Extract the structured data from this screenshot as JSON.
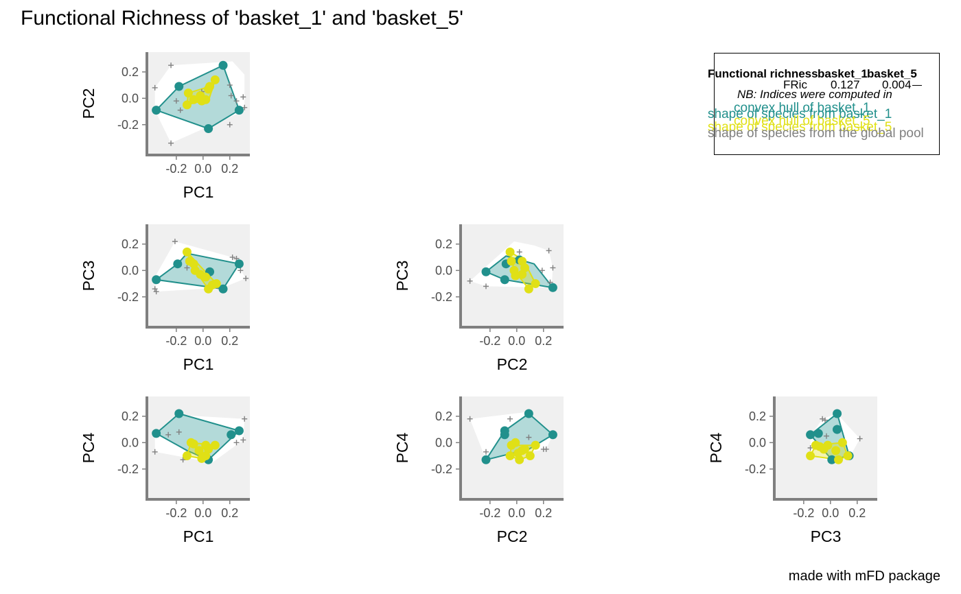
{
  "title": "Functional Richness of 'basket_1' and 'basket_5'",
  "caption": "made with mFD package",
  "colors": {
    "basket_1": "#21908c",
    "basket_1_fill": "#a6d4d2",
    "basket_5": "#e0e016",
    "pool": "#808080",
    "panel_bg": "#f0f0f0",
    "axis": "#7f7f7f"
  },
  "legend": {
    "header": [
      "Functional richness",
      "basket_1",
      "basket_5"
    ],
    "fric_label": "FRic",
    "fric_values": [
      "0.127",
      "0.004"
    ],
    "note": "NB: Indices were computed in",
    "hull_b1": "convex hull of basket_1",
    "shape_b1": "shape of species from basket_1",
    "hull_b5": "convex hull of basket_5",
    "shape_b5": "shape of species from basket_5",
    "shape_pool": "shape of species from the global pool"
  },
  "chart_data": [
    {
      "type": "scatter",
      "xlabel": "PC1",
      "ylabel": "PC2",
      "xticks": [
        "-0.2",
        "0.0",
        "0.2"
      ],
      "yticks": [
        "0.2",
        "0.0",
        "-0.2"
      ],
      "xlim": [
        -0.42,
        0.35
      ],
      "ylim": [
        -0.43,
        0.35
      ],
      "pool": [
        [
          -0.24,
          0.25
        ],
        [
          -0.36,
          0.08
        ],
        [
          -0.01,
          0.05
        ],
        [
          0.21,
          0.02
        ],
        [
          0.3,
          0.01
        ],
        [
          0.31,
          -0.07
        ],
        [
          0.25,
          -0.02
        ],
        [
          -0.2,
          -0.02
        ],
        [
          -0.17,
          -0.09
        ],
        [
          0.2,
          -0.2
        ],
        [
          -0.24,
          -0.34
        ],
        [
          0.2,
          0.1
        ]
      ],
      "pool_hull": [
        [
          -0.24,
          0.25
        ],
        [
          0.22,
          0.28
        ],
        [
          0.31,
          0.18
        ],
        [
          0.31,
          -0.07
        ],
        [
          0.25,
          -0.12
        ],
        [
          -0.24,
          -0.34
        ],
        [
          -0.36,
          -0.09
        ],
        [
          -0.36,
          0.08
        ]
      ],
      "basket_1": [
        [
          -0.35,
          -0.09
        ],
        [
          -0.18,
          0.09
        ],
        [
          0.15,
          0.25
        ],
        [
          0.27,
          -0.09
        ],
        [
          0.04,
          -0.23
        ],
        [
          -0.01,
          -0.01
        ]
      ],
      "basket_1_hull": [
        [
          -0.35,
          -0.09
        ],
        [
          -0.18,
          0.09
        ],
        [
          0.15,
          0.25
        ],
        [
          0.27,
          -0.09
        ],
        [
          0.04,
          -0.23
        ]
      ],
      "basket_5": [
        [
          -0.12,
          -0.05
        ],
        [
          -0.11,
          0.04
        ],
        [
          -0.07,
          -0.01
        ],
        [
          -0.02,
          0.02
        ],
        [
          0.02,
          -0.01
        ],
        [
          0.04,
          0.07
        ],
        [
          0.05,
          0.09
        ],
        [
          0.09,
          0.14
        ],
        [
          -0.01,
          -0.02
        ]
      ],
      "basket_5_hull": [
        [
          -0.12,
          -0.05
        ],
        [
          -0.11,
          0.04
        ],
        [
          0.05,
          0.09
        ],
        [
          0.09,
          0.14
        ],
        [
          0.04,
          -0.02
        ],
        [
          -0.01,
          -0.02
        ]
      ]
    },
    {
      "type": "scatter",
      "xlabel": "PC1",
      "ylabel": "PC3",
      "xticks": [
        "-0.2",
        "0.0",
        "0.2"
      ],
      "yticks": [
        "0.2",
        "0.0",
        "-0.2"
      ],
      "xlim": [
        -0.42,
        0.35
      ],
      "ylim": [
        -0.43,
        0.35
      ],
      "pool": [
        [
          -0.21,
          0.22
        ],
        [
          -0.36,
          -0.14
        ],
        [
          -0.35,
          -0.16
        ],
        [
          0.22,
          0.1
        ],
        [
          0.25,
          0.09
        ],
        [
          0.32,
          -0.06
        ],
        [
          0.28,
          0.0
        ],
        [
          -0.12,
          0.02
        ],
        [
          0.11,
          -0.12
        ]
      ],
      "pool_hull": [
        [
          -0.21,
          0.22
        ],
        [
          0.22,
          0.1
        ],
        [
          0.32,
          -0.06
        ],
        [
          0.15,
          -0.13
        ],
        [
          -0.35,
          -0.16
        ],
        [
          -0.36,
          -0.05
        ]
      ],
      "basket_1": [
        [
          -0.35,
          -0.07
        ],
        [
          -0.19,
          0.05
        ],
        [
          0.27,
          0.05
        ],
        [
          0.15,
          -0.14
        ],
        [
          0.05,
          -0.01
        ]
      ],
      "basket_1_hull": [
        [
          -0.35,
          -0.07
        ],
        [
          -0.19,
          0.05
        ],
        [
          -0.12,
          0.13
        ],
        [
          0.27,
          0.05
        ],
        [
          0.15,
          -0.14
        ]
      ],
      "basket_5": [
        [
          -0.12,
          0.14
        ],
        [
          -0.1,
          0.07
        ],
        [
          -0.07,
          0.05
        ],
        [
          -0.06,
          0.0
        ],
        [
          -0.02,
          -0.03
        ],
        [
          0.02,
          -0.05
        ],
        [
          0.04,
          -0.14
        ],
        [
          0.07,
          -0.11
        ],
        [
          0.1,
          -0.1
        ]
      ],
      "basket_5_hull": [
        [
          -0.12,
          0.14
        ],
        [
          0.1,
          -0.1
        ],
        [
          0.04,
          -0.14
        ],
        [
          -0.06,
          0.0
        ]
      ]
    },
    {
      "type": "scatter",
      "xlabel": "PC2",
      "ylabel": "PC3",
      "xticks": [
        "-0.2",
        "0.0",
        "0.2"
      ],
      "yticks": [
        "0.2",
        "0.0",
        "-0.2"
      ],
      "xlim": [
        -0.42,
        0.35
      ],
      "ylim": [
        -0.43,
        0.35
      ],
      "pool": [
        [
          -0.35,
          -0.08
        ],
        [
          -0.23,
          -0.12
        ],
        [
          0.02,
          0.14
        ],
        [
          0.24,
          0.15
        ],
        [
          0.27,
          0.02
        ],
        [
          0.25,
          -0.09
        ],
        [
          0.19,
          0.0
        ]
      ],
      "pool_hull": [
        [
          -0.35,
          -0.08
        ],
        [
          -0.02,
          0.22
        ],
        [
          0.13,
          0.19
        ],
        [
          0.24,
          0.15
        ],
        [
          0.27,
          0.02
        ],
        [
          0.26,
          -0.13
        ],
        [
          -0.23,
          -0.12
        ]
      ],
      "basket_1": [
        [
          -0.23,
          -0.01
        ],
        [
          -0.08,
          0.05
        ],
        [
          -0.09,
          -0.07
        ],
        [
          0.27,
          -0.13
        ],
        [
          0.02,
          0.08
        ]
      ],
      "basket_1_hull": [
        [
          -0.23,
          -0.01
        ],
        [
          -0.08,
          0.11
        ],
        [
          0.13,
          0.05
        ],
        [
          0.27,
          -0.13
        ],
        [
          -0.09,
          -0.07
        ]
      ],
      "basket_5": [
        [
          -0.05,
          0.14
        ],
        [
          -0.04,
          0.07
        ],
        [
          -0.02,
          0.0
        ],
        [
          -0.01,
          -0.04
        ],
        [
          0.04,
          0.07
        ],
        [
          0.06,
          0.02
        ],
        [
          0.09,
          -0.14
        ],
        [
          0.14,
          -0.1
        ],
        [
          0.04,
          -0.03
        ]
      ],
      "basket_5_hull": [
        [
          -0.05,
          0.14
        ],
        [
          0.05,
          0.08
        ],
        [
          0.14,
          -0.1
        ],
        [
          0.09,
          -0.14
        ],
        [
          -0.02,
          0.0
        ]
      ]
    },
    {
      "type": "scatter",
      "xlabel": "PC1",
      "ylabel": "PC4",
      "xticks": [
        "-0.2",
        "0.0",
        "0.2"
      ],
      "yticks": [
        "0.2",
        "0.0",
        "-0.2"
      ],
      "xlim": [
        -0.42,
        0.35
      ],
      "ylim": [
        -0.43,
        0.35
      ],
      "pool": [
        [
          -0.36,
          -0.07
        ],
        [
          -0.26,
          0.06
        ],
        [
          -0.18,
          0.08
        ],
        [
          -0.15,
          -0.13
        ],
        [
          0.31,
          0.18
        ],
        [
          0.25,
          0.0
        ],
        [
          0.3,
          0.02
        ]
      ],
      "pool_hull": [
        [
          -0.36,
          0.07
        ],
        [
          -0.2,
          0.21
        ],
        [
          0.31,
          0.18
        ],
        [
          0.3,
          0.02
        ],
        [
          0.07,
          -0.15
        ],
        [
          -0.36,
          -0.07
        ]
      ],
      "basket_1": [
        [
          -0.35,
          0.07
        ],
        [
          -0.18,
          0.22
        ],
        [
          0.27,
          0.09
        ],
        [
          0.21,
          0.06
        ],
        [
          0.04,
          -0.13
        ]
      ],
      "basket_1_hull": [
        [
          -0.35,
          0.07
        ],
        [
          -0.18,
          0.22
        ],
        [
          0.27,
          0.09
        ],
        [
          0.04,
          -0.13
        ],
        [
          -0.12,
          -0.06
        ]
      ],
      "basket_5": [
        [
          -0.12,
          -0.1
        ],
        [
          -0.09,
          0.0
        ],
        [
          -0.07,
          -0.01
        ],
        [
          -0.03,
          -0.06
        ],
        [
          -0.01,
          -0.12
        ],
        [
          0.02,
          -0.02
        ],
        [
          0.04,
          -0.05
        ],
        [
          0.09,
          -0.02
        ],
        [
          0.02,
          -0.1
        ]
      ],
      "basket_5_hull": [
        [
          -0.12,
          -0.1
        ],
        [
          -0.09,
          0.0
        ],
        [
          0.09,
          -0.02
        ],
        [
          0.02,
          -0.1
        ],
        [
          -0.01,
          -0.12
        ]
      ]
    },
    {
      "type": "scatter",
      "xlabel": "PC2",
      "ylabel": "PC4",
      "xticks": [
        "-0.2",
        "0.0",
        "0.2"
      ],
      "yticks": [
        "0.2",
        "0.0",
        "-0.2"
      ],
      "xlim": [
        -0.42,
        0.35
      ],
      "ylim": [
        -0.43,
        0.35
      ],
      "pool": [
        [
          -0.35,
          0.18
        ],
        [
          -0.23,
          -0.07
        ],
        [
          -0.1,
          0.06
        ],
        [
          -0.05,
          0.18
        ],
        [
          0.09,
          0.04
        ],
        [
          0.15,
          -0.01
        ],
        [
          0.2,
          -0.05
        ],
        [
          0.22,
          -0.05
        ]
      ],
      "pool_hull": [
        [
          -0.35,
          0.18
        ],
        [
          0.06,
          0.23
        ],
        [
          0.13,
          0.19
        ],
        [
          0.27,
          0.06
        ],
        [
          0.22,
          -0.05
        ],
        [
          -0.23,
          -0.13
        ]
      ],
      "basket_1": [
        [
          -0.23,
          -0.13
        ],
        [
          -0.09,
          0.09
        ],
        [
          -0.09,
          0.06
        ],
        [
          0.09,
          0.22
        ],
        [
          0.27,
          0.06
        ]
      ],
      "basket_1_hull": [
        [
          -0.23,
          -0.13
        ],
        [
          -0.09,
          0.09
        ],
        [
          0.09,
          0.22
        ],
        [
          0.27,
          0.06
        ],
        [
          0.09,
          -0.05
        ]
      ],
      "basket_5": [
        [
          -0.05,
          -0.1
        ],
        [
          -0.04,
          -0.02
        ],
        [
          -0.01,
          0.0
        ],
        [
          0.01,
          -0.08
        ],
        [
          0.02,
          -0.13
        ],
        [
          0.06,
          -0.05
        ],
        [
          0.1,
          -0.1
        ],
        [
          0.14,
          -0.02
        ],
        [
          0.04,
          -0.06
        ]
      ],
      "basket_5_hull": [
        [
          -0.05,
          -0.1
        ],
        [
          -0.04,
          -0.02
        ],
        [
          0.14,
          -0.02
        ],
        [
          0.1,
          -0.1
        ],
        [
          0.02,
          -0.13
        ]
      ]
    },
    {
      "type": "scatter",
      "xlabel": "PC3",
      "ylabel": "PC4",
      "xticks": [
        "-0.2",
        "0.0",
        "0.2"
      ],
      "yticks": [
        "0.2",
        "0.0",
        "-0.2"
      ],
      "xlim": [
        -0.42,
        0.35
      ],
      "ylim": [
        -0.43,
        0.35
      ],
      "pool": [
        [
          -0.06,
          0.18
        ],
        [
          -0.04,
          0.17
        ],
        [
          -0.03,
          0.05
        ],
        [
          -0.15,
          -0.04
        ],
        [
          0.22,
          0.03
        ],
        [
          0.1,
          0.0
        ]
      ],
      "pool_hull": [
        [
          -0.06,
          0.18
        ],
        [
          0.05,
          0.22
        ],
        [
          0.12,
          0.14
        ],
        [
          0.22,
          0.03
        ],
        [
          0.15,
          -0.1
        ],
        [
          0.0,
          -0.14
        ],
        [
          -0.15,
          -0.1
        ],
        [
          -0.15,
          0.05
        ]
      ],
      "basket_1": [
        [
          -0.15,
          0.06
        ],
        [
          -0.09,
          0.07
        ],
        [
          0.05,
          0.22
        ],
        [
          0.05,
          0.1
        ],
        [
          0.01,
          -0.13
        ],
        [
          0.14,
          -0.1
        ],
        [
          0.05,
          0.1
        ]
      ],
      "basket_1_hull": [
        [
          -0.15,
          0.06
        ],
        [
          0.05,
          0.22
        ],
        [
          0.14,
          -0.1
        ],
        [
          0.01,
          -0.13
        ]
      ],
      "basket_5": [
        [
          -0.15,
          -0.1
        ],
        [
          -0.11,
          -0.02
        ],
        [
          -0.08,
          -0.03
        ],
        [
          -0.05,
          -0.05
        ],
        [
          -0.02,
          -0.02
        ],
        [
          0.04,
          -0.06
        ],
        [
          0.06,
          -0.13
        ],
        [
          0.09,
          0.0
        ],
        [
          0.13,
          -0.1
        ]
      ],
      "basket_5_hull": [
        [
          -0.15,
          -0.1
        ],
        [
          -0.11,
          -0.02
        ],
        [
          0.09,
          0.0
        ],
        [
          0.13,
          -0.1
        ],
        [
          0.06,
          -0.13
        ]
      ]
    }
  ]
}
